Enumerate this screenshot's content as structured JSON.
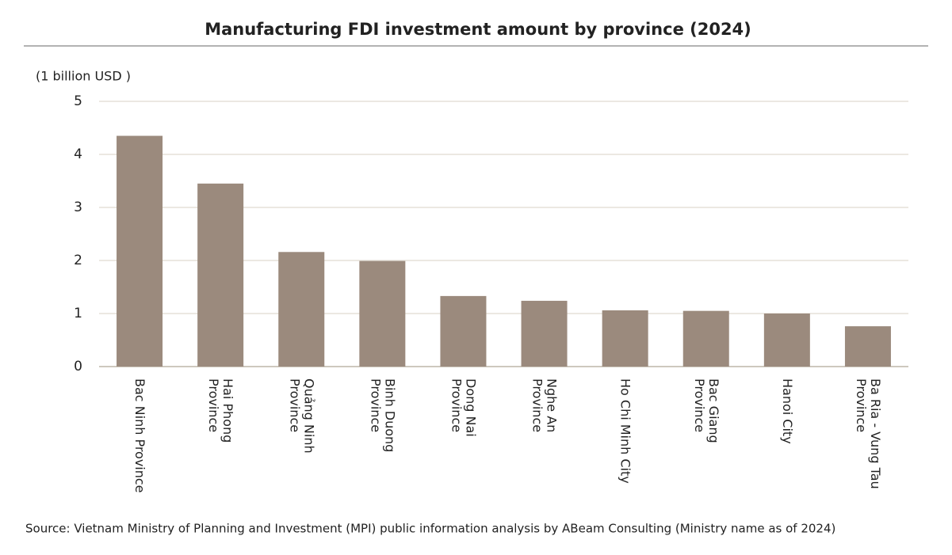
{
  "chart_data": {
    "type": "bar",
    "title": "Manufacturing  FDI  investment amount by province  (2024)",
    "y_axis_label": "(1 billion USD  )",
    "source": "Source: Vietnam Ministry of Planning and Investment (MPI) public information analysis by ABeam Consulting (Ministry name as of 2024)",
    "categories": [
      [
        "Bac Ninh Province"
      ],
      [
        "Hai Phong",
        "Province"
      ],
      [
        "Quảng Ninh",
        "Province"
      ],
      [
        "Binh Duong",
        "Province"
      ],
      [
        "Dong Nai",
        "Province"
      ],
      [
        "Nghe An",
        "Province"
      ],
      [
        "Ho Chi Minh City"
      ],
      [
        "Bac Giang",
        "Province"
      ],
      [
        "Hanoi City"
      ],
      [
        "Ba Ria - Vung Tau",
        "Province"
      ]
    ],
    "values": [
      4.35,
      3.45,
      2.16,
      1.99,
      1.33,
      1.24,
      1.06,
      1.05,
      1.0,
      0.76
    ],
    "color": "#9b8a7d",
    "ylim": [
      0,
      5
    ],
    "yticks": [
      0,
      1,
      2,
      3,
      4,
      5
    ],
    "grid": true
  }
}
